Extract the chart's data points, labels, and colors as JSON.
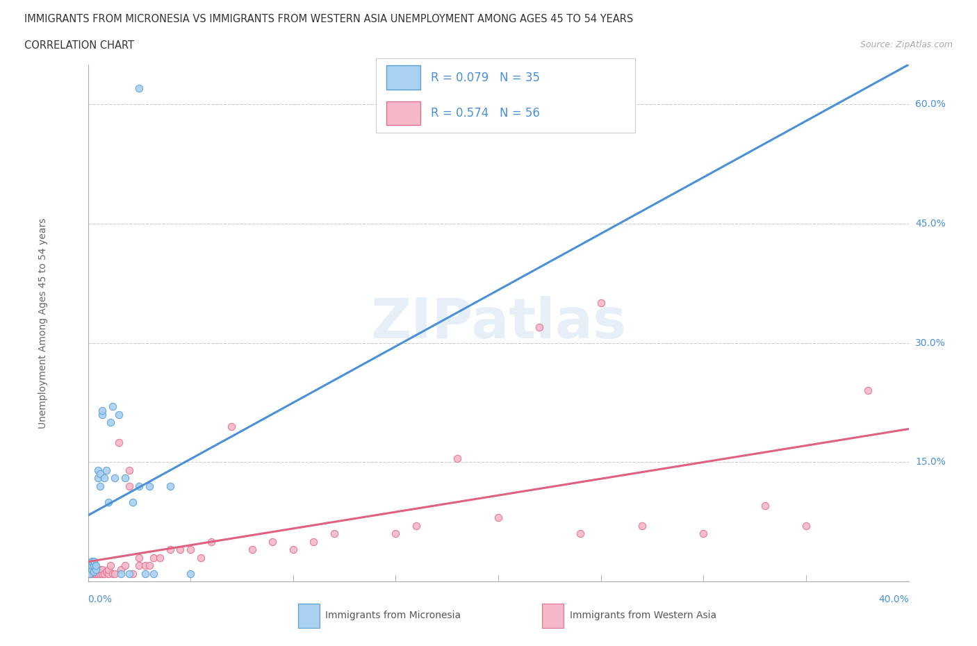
{
  "title_line1": "IMMIGRANTS FROM MICRONESIA VS IMMIGRANTS FROM WESTERN ASIA UNEMPLOYMENT AMONG AGES 45 TO 54 YEARS",
  "title_line2": "CORRELATION CHART",
  "source_text": "Source: ZipAtlas.com",
  "ylabel": "Unemployment Among Ages 45 to 54 years",
  "color_micro_fill": "#a8d0f0",
  "color_micro_edge": "#5a9fd4",
  "color_micro_line": "#4a90d9",
  "color_west_fill": "#f5b8c8",
  "color_west_edge": "#e07090",
  "color_west_line": "#e06080",
  "R_micro": 0.079,
  "N_micro": 35,
  "R_west": 0.574,
  "N_west": 56,
  "watermark": "ZIPatlas",
  "legend_label_micro": "Immigrants from Micronesia",
  "legend_label_west": "Immigrants from Western Asia",
  "xlim": [
    0.0,
    0.4
  ],
  "ylim": [
    0.0,
    0.65
  ],
  "yticks_right": [
    0.0,
    0.15,
    0.3,
    0.45,
    0.6
  ],
  "ytick_labels_right": [
    "",
    "15.0%",
    "30.0%",
    "45.0%",
    "60.0%"
  ],
  "scatter_micro_x": [
    0.001,
    0.001,
    0.001,
    0.002,
    0.002,
    0.002,
    0.003,
    0.003,
    0.003,
    0.004,
    0.004,
    0.005,
    0.005,
    0.006,
    0.006,
    0.007,
    0.007,
    0.008,
    0.009,
    0.01,
    0.011,
    0.012,
    0.013,
    0.015,
    0.016,
    0.018,
    0.02,
    0.022,
    0.025,
    0.028,
    0.03,
    0.032,
    0.04,
    0.05,
    0.025
  ],
  "scatter_micro_y": [
    0.02,
    0.015,
    0.01,
    0.015,
    0.02,
    0.025,
    0.012,
    0.02,
    0.025,
    0.015,
    0.02,
    0.13,
    0.14,
    0.12,
    0.135,
    0.21,
    0.215,
    0.13,
    0.14,
    0.1,
    0.2,
    0.22,
    0.13,
    0.21,
    0.01,
    0.13,
    0.01,
    0.1,
    0.12,
    0.01,
    0.12,
    0.01,
    0.12,
    0.01,
    0.62
  ],
  "scatter_west_x": [
    0.001,
    0.001,
    0.002,
    0.002,
    0.003,
    0.003,
    0.004,
    0.004,
    0.005,
    0.005,
    0.006,
    0.006,
    0.007,
    0.007,
    0.008,
    0.009,
    0.01,
    0.01,
    0.011,
    0.012,
    0.013,
    0.015,
    0.016,
    0.018,
    0.02,
    0.02,
    0.022,
    0.025,
    0.025,
    0.028,
    0.03,
    0.032,
    0.035,
    0.04,
    0.045,
    0.05,
    0.055,
    0.06,
    0.07,
    0.08,
    0.09,
    0.1,
    0.11,
    0.12,
    0.15,
    0.16,
    0.18,
    0.2,
    0.22,
    0.24,
    0.25,
    0.27,
    0.3,
    0.33,
    0.35,
    0.38
  ],
  "scatter_west_y": [
    0.01,
    0.015,
    0.01,
    0.018,
    0.01,
    0.018,
    0.01,
    0.018,
    0.01,
    0.015,
    0.01,
    0.015,
    0.01,
    0.015,
    0.01,
    0.012,
    0.01,
    0.015,
    0.02,
    0.01,
    0.01,
    0.175,
    0.015,
    0.02,
    0.12,
    0.14,
    0.01,
    0.02,
    0.03,
    0.02,
    0.02,
    0.03,
    0.03,
    0.04,
    0.04,
    0.04,
    0.03,
    0.05,
    0.195,
    0.04,
    0.05,
    0.04,
    0.05,
    0.06,
    0.06,
    0.07,
    0.155,
    0.08,
    0.32,
    0.06,
    0.35,
    0.07,
    0.06,
    0.095,
    0.07,
    0.24
  ]
}
